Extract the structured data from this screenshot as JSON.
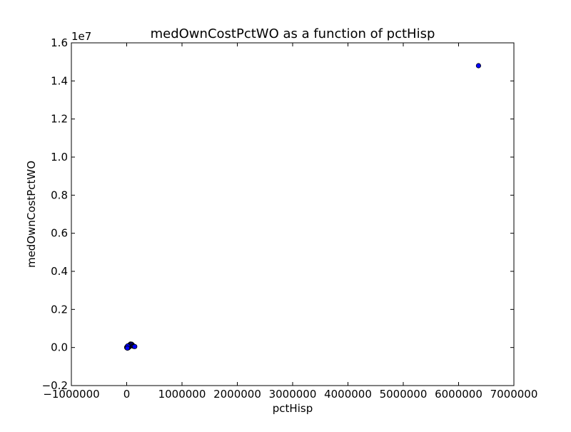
{
  "chart_data": {
    "type": "scatter",
    "title": "medOwnCostPctWO as a function of pctHisp",
    "xlabel": "pctHisp",
    "ylabel": "medOwnCostPctWO",
    "xlim": [
      -1000000,
      7000000
    ],
    "ylim": [
      -2000000,
      16000000
    ],
    "y_offset_label": "1e7",
    "x_ticks": [
      {
        "value": -1000000,
        "label": "−1000000"
      },
      {
        "value": 0,
        "label": "0"
      },
      {
        "value": 1000000,
        "label": "1000000"
      },
      {
        "value": 2000000,
        "label": "2000000"
      },
      {
        "value": 3000000,
        "label": "3000000"
      },
      {
        "value": 4000000,
        "label": "4000000"
      },
      {
        "value": 5000000,
        "label": "5000000"
      },
      {
        "value": 6000000,
        "label": "6000000"
      },
      {
        "value": 7000000,
        "label": "7000000"
      }
    ],
    "y_ticks": [
      {
        "value": -2000000,
        "label": "−0.2"
      },
      {
        "value": 0,
        "label": "0.0"
      },
      {
        "value": 2000000,
        "label": "0.2"
      },
      {
        "value": 4000000,
        "label": "0.4"
      },
      {
        "value": 6000000,
        "label": "0.6"
      },
      {
        "value": 8000000,
        "label": "0.8"
      },
      {
        "value": 10000000,
        "label": "1.0"
      },
      {
        "value": 12000000,
        "label": "1.2"
      },
      {
        "value": 14000000,
        "label": "1.4"
      },
      {
        "value": 16000000,
        "label": "1.6"
      }
    ],
    "grid": false,
    "marker_color": "#0000ff",
    "marker_edge": "#000000",
    "points": [
      {
        "x": 0,
        "y": 0
      },
      {
        "x": 3000,
        "y": 20000
      },
      {
        "x": 8000,
        "y": -15000
      },
      {
        "x": 15000,
        "y": 10000
      },
      {
        "x": 20000,
        "y": 40000
      },
      {
        "x": 25000,
        "y": -20000
      },
      {
        "x": 30000,
        "y": 60000
      },
      {
        "x": 35000,
        "y": 15000
      },
      {
        "x": 40000,
        "y": 90000
      },
      {
        "x": 45000,
        "y": 30000
      },
      {
        "x": 50000,
        "y": 120000
      },
      {
        "x": 55000,
        "y": 70000
      },
      {
        "x": 60000,
        "y": 150000
      },
      {
        "x": 65000,
        "y": 100000
      },
      {
        "x": 70000,
        "y": 180000
      },
      {
        "x": 75000,
        "y": 130000
      },
      {
        "x": 80000,
        "y": 160000
      },
      {
        "x": 85000,
        "y": 120000
      },
      {
        "x": 90000,
        "y": 170000
      },
      {
        "x": 95000,
        "y": 110000
      },
      {
        "x": 100000,
        "y": 140000
      },
      {
        "x": 110000,
        "y": 90000
      },
      {
        "x": 120000,
        "y": 70000
      },
      {
        "x": 130000,
        "y": 60000
      },
      {
        "x": 145000,
        "y": 50000
      },
      {
        "x": 10000,
        "y": 50000
      },
      {
        "x": 18000,
        "y": 80000
      },
      {
        "x": 12000,
        "y": -30000
      },
      {
        "x": 6360000,
        "y": 14800000
      }
    ]
  }
}
